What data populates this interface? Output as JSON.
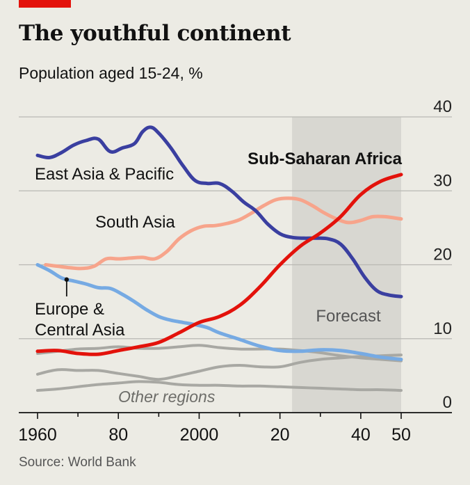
{
  "header": {
    "title": "The youthful continent",
    "subtitle": "Population aged 15-24, %"
  },
  "footer": {
    "source": "Source: World Bank"
  },
  "colors": {
    "background": "#ecebe4",
    "forecast_shade": "#d8d7d1",
    "gridline": "#b9b8b3",
    "sub_saharan_africa": "#e3120b",
    "east_asia_pacific": "#3a3fa0",
    "south_asia": "#f7a48b",
    "europe_central_asia": "#76aae3",
    "other_regions": "#a8a8a3",
    "brand_bar": "#e3120b"
  },
  "chart_data": {
    "type": "line",
    "title": "The youthful continent",
    "subtitle": "Population aged 15-24, %",
    "xlim": [
      1960,
      2050
    ],
    "ylim": [
      0,
      40
    ],
    "x_ticks": [
      1960,
      1980,
      2000,
      2020,
      2040,
      2050
    ],
    "x_tick_labels": [
      "1960",
      "80",
      "2000",
      "20",
      "40",
      "50"
    ],
    "y_ticks": [
      0,
      10,
      20,
      30,
      40
    ],
    "y_tick_labels": [
      "0",
      "10",
      "20",
      "30",
      "40"
    ],
    "y_axis_side": "right",
    "grid": true,
    "forecast": {
      "start": 2023,
      "end": 2050,
      "label": "Forecast"
    },
    "annotation": "Other regions",
    "series": [
      {
        "name": "Sub-Saharan Africa",
        "color": "#e3120b",
        "width": 5,
        "label_bold": true,
        "x": [
          1960,
          1965,
          1970,
          1975,
          1980,
          1985,
          1990,
          1995,
          2000,
          2005,
          2010,
          2015,
          2020,
          2025,
          2030,
          2035,
          2040,
          2045,
          2050
        ],
        "y": [
          8.3,
          8.4,
          8.0,
          7.9,
          8.4,
          8.9,
          9.5,
          10.8,
          12.2,
          13.0,
          14.5,
          17.0,
          20.0,
          22.5,
          24.3,
          26.5,
          29.5,
          31.3,
          32.2
        ]
      },
      {
        "name": "East Asia & Pacific",
        "color": "#3a3fa0",
        "width": 5,
        "x": [
          1960,
          1963,
          1966,
          1969,
          1972,
          1975,
          1978,
          1981,
          1984,
          1986,
          1988,
          1990,
          1993,
          1996,
          1999,
          2002,
          2005,
          2008,
          2011,
          2014,
          2017,
          2020,
          2023,
          2026,
          2029,
          2032,
          2035,
          2038,
          2041,
          2044,
          2047,
          2050
        ],
        "y": [
          34.8,
          34.5,
          35.2,
          36.2,
          36.8,
          37.0,
          35.3,
          35.8,
          36.4,
          38.0,
          38.6,
          37.8,
          35.8,
          33.4,
          31.4,
          31.0,
          31.0,
          30.0,
          28.5,
          27.3,
          25.5,
          24.2,
          23.7,
          23.6,
          23.6,
          23.5,
          22.8,
          20.8,
          18.3,
          16.5,
          15.9,
          15.7
        ]
      },
      {
        "name": "South Asia",
        "color": "#f7a48b",
        "width": 5,
        "x": [
          1962,
          1965,
          1968,
          1971,
          1974,
          1977,
          1980,
          1983,
          1986,
          1989,
          1992,
          1995,
          1998,
          2001,
          2004,
          2007,
          2010,
          2013,
          2016,
          2019,
          2022,
          2025,
          2028,
          2031,
          2034,
          2037,
          2040,
          2043,
          2046,
          2050
        ],
        "y": [
          20.0,
          19.8,
          19.6,
          19.5,
          19.8,
          20.8,
          20.8,
          20.9,
          21.0,
          20.8,
          21.8,
          23.5,
          24.6,
          25.2,
          25.3,
          25.6,
          26.1,
          27.0,
          28.0,
          28.8,
          29.0,
          28.8,
          28.0,
          27.0,
          26.2,
          25.7,
          26.0,
          26.5,
          26.5,
          26.2
        ]
      },
      {
        "name": "Europe & Central Asia",
        "color": "#76aae3",
        "width": 5,
        "x": [
          1960,
          1963,
          1966,
          1969,
          1972,
          1975,
          1978,
          1981,
          1984,
          1987,
          1990,
          1993,
          1996,
          1999,
          2002,
          2005,
          2010,
          2015,
          2020,
          2025,
          2030,
          2035,
          2040,
          2045,
          2050
        ],
        "y": [
          20.0,
          19.2,
          18.2,
          17.8,
          17.4,
          16.9,
          16.8,
          16.0,
          15.0,
          13.9,
          13.0,
          12.5,
          12.2,
          11.9,
          11.5,
          10.8,
          9.9,
          9.0,
          8.4,
          8.3,
          8.5,
          8.4,
          8.0,
          7.5,
          7.2
        ]
      },
      {
        "name": "Other regions",
        "color": "#a8a8a3",
        "width": 4,
        "x": [
          1960,
          1965,
          1970,
          1975,
          1980,
          1985,
          1990,
          1995,
          2000,
          2005,
          2010,
          2015,
          2020,
          2025,
          2030,
          2035,
          2040,
          2045,
          2050
        ],
        "y": [
          8.0,
          8.3,
          8.6,
          8.7,
          8.9,
          8.7,
          8.7,
          8.9,
          9.1,
          8.8,
          8.6,
          8.6,
          8.6,
          8.4,
          8.1,
          7.7,
          7.4,
          7.2,
          7.0
        ]
      },
      {
        "name": "Other regions",
        "color": "#a8a8a3",
        "width": 4,
        "x": [
          1960,
          1965,
          1970,
          1975,
          1980,
          1985,
          1990,
          1995,
          2000,
          2005,
          2010,
          2015,
          2020,
          2025,
          2030,
          2035,
          2040,
          2045,
          2050
        ],
        "y": [
          5.2,
          5.8,
          5.7,
          5.7,
          5.3,
          4.9,
          4.5,
          5.0,
          5.6,
          6.2,
          6.4,
          6.2,
          6.2,
          6.8,
          7.2,
          7.4,
          7.6,
          7.7,
          7.8
        ]
      },
      {
        "name": "Other regions",
        "color": "#a8a8a3",
        "width": 4,
        "x": [
          1960,
          1965,
          1970,
          1975,
          1980,
          1985,
          1990,
          1995,
          2000,
          2005,
          2010,
          2015,
          2020,
          2025,
          2030,
          2035,
          2040,
          2045,
          2050
        ],
        "y": [
          3.0,
          3.2,
          3.5,
          3.8,
          4.0,
          4.2,
          4.1,
          3.8,
          3.7,
          3.7,
          3.6,
          3.6,
          3.5,
          3.4,
          3.3,
          3.2,
          3.1,
          3.1,
          3.0
        ]
      }
    ]
  }
}
